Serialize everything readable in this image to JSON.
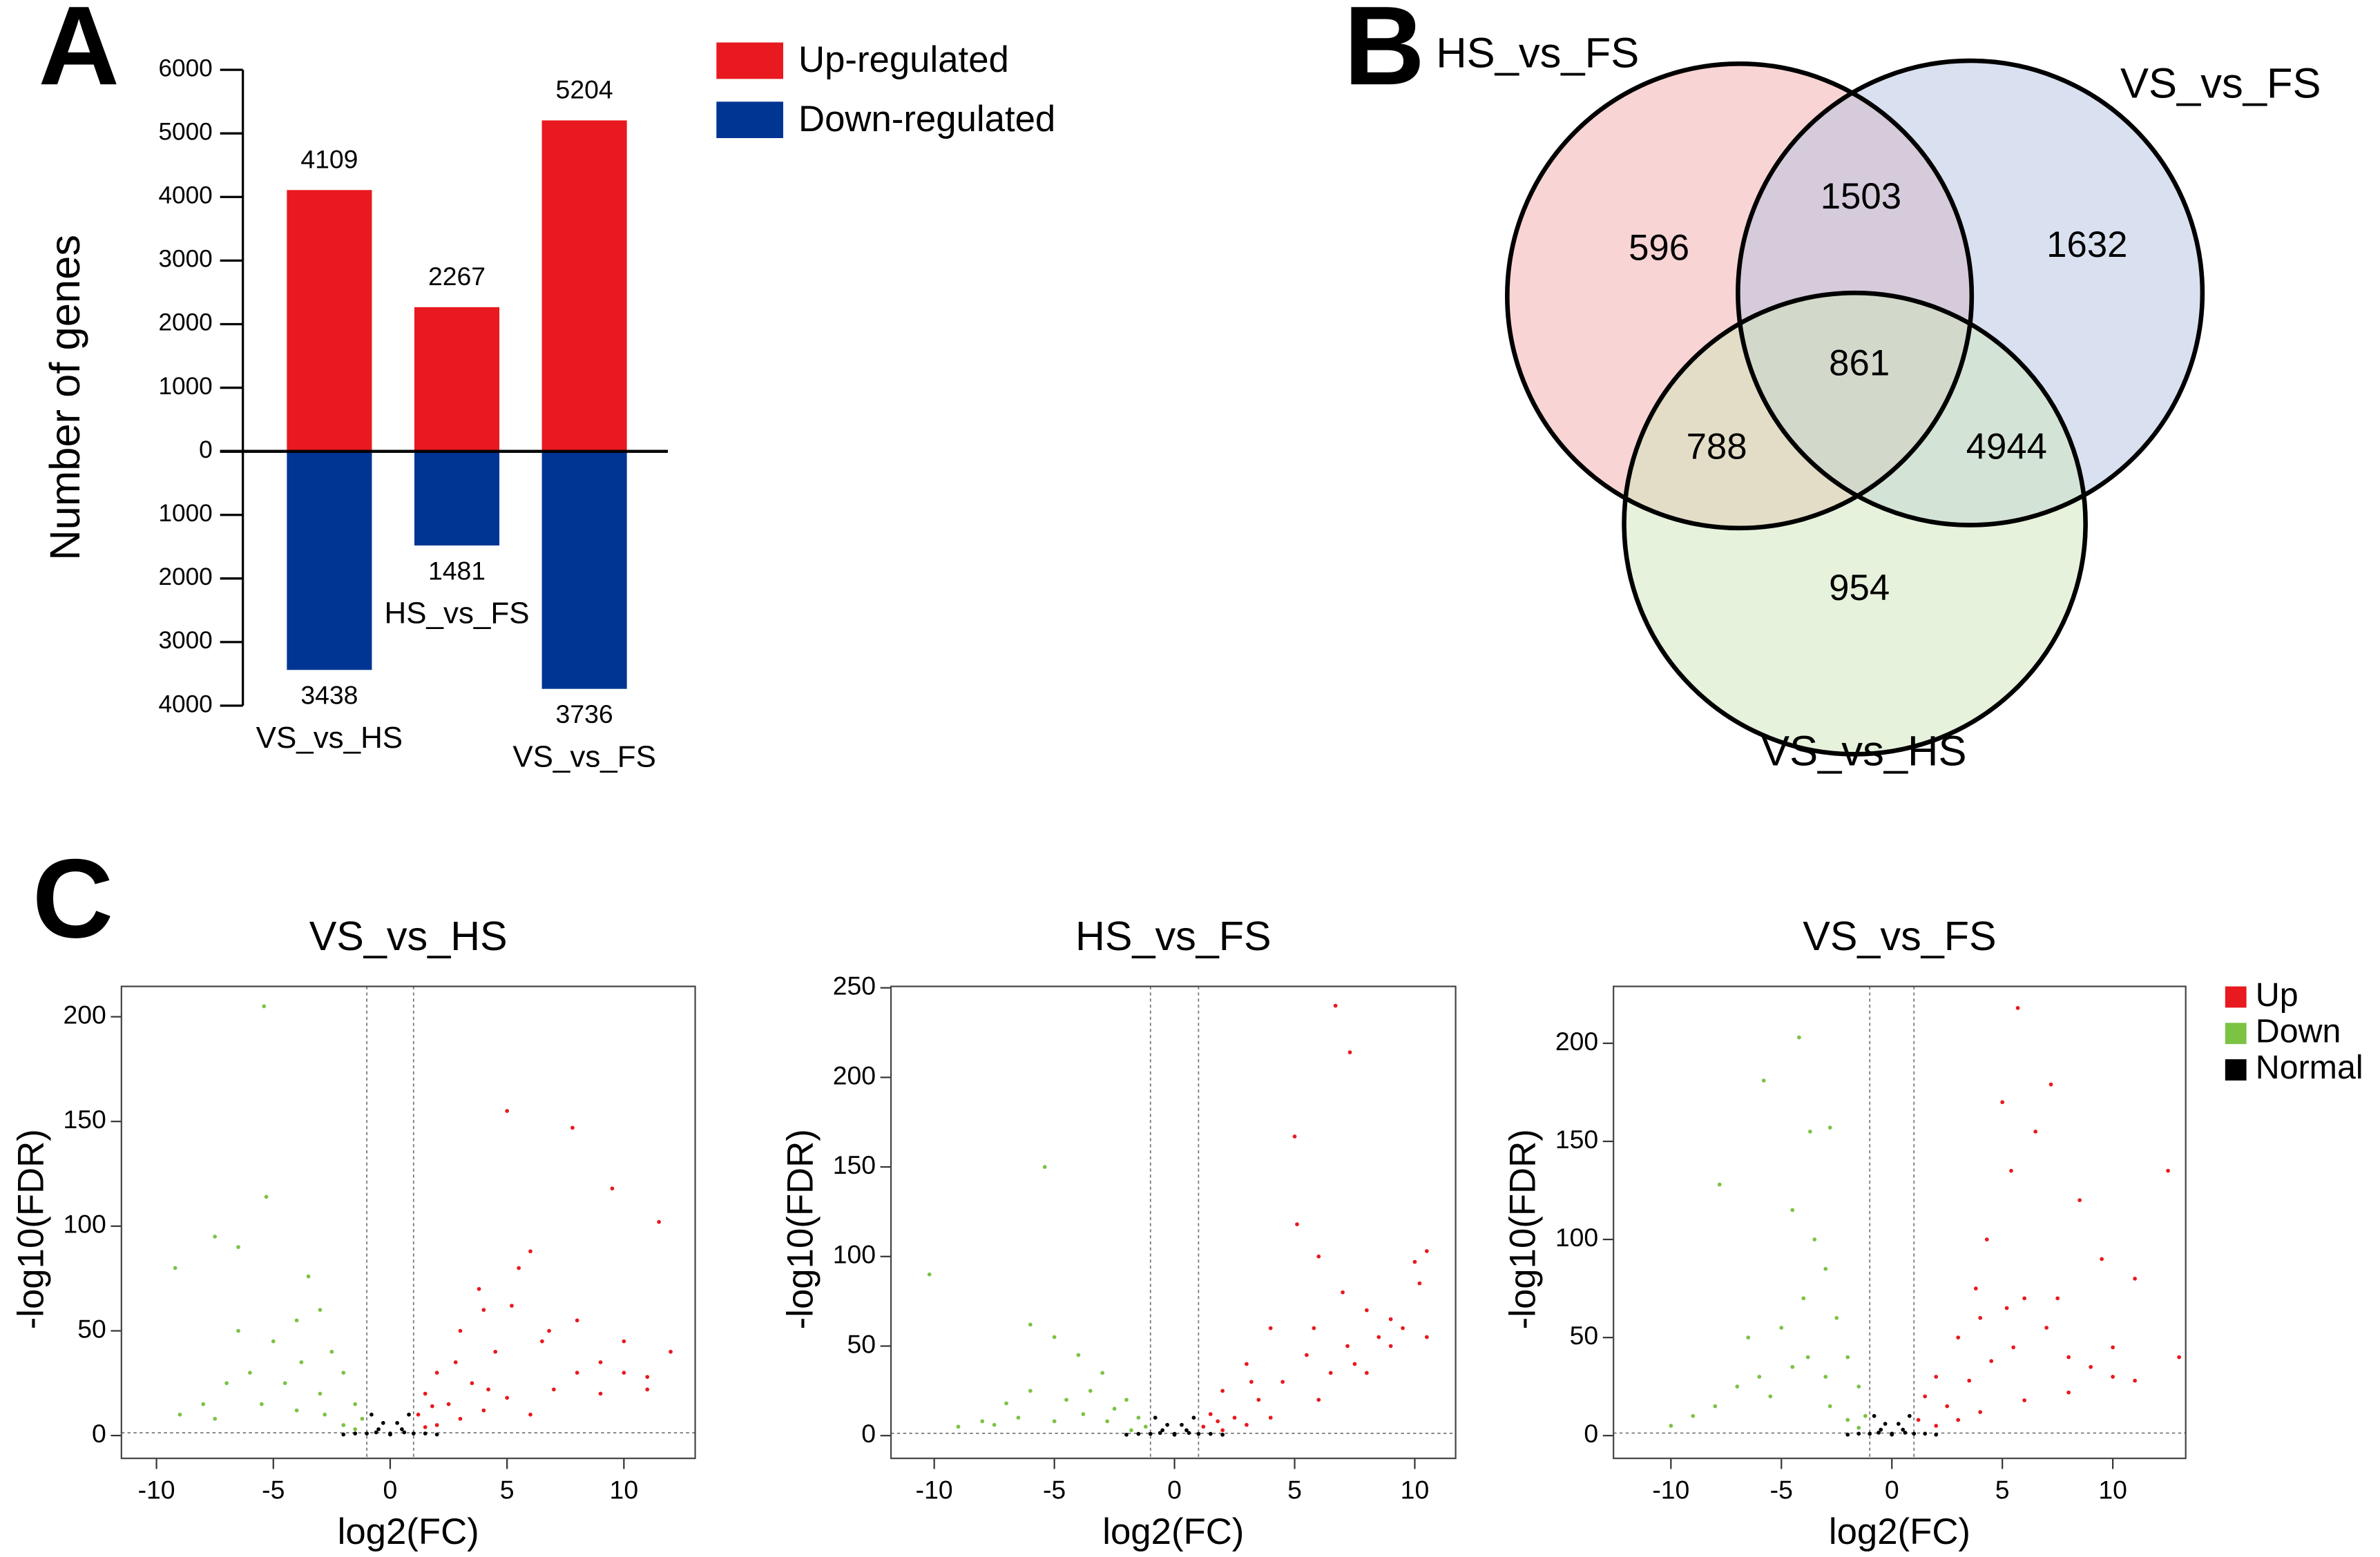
{
  "chart_data": [
    {
      "type": "diverging_bar",
      "panel_label": "A",
      "ylabel": "Number of genes",
      "categories": [
        "VS_vs_HS",
        "HS_vs_FS",
        "VS_vs_FS"
      ],
      "series": [
        {
          "name": "Up-regulated",
          "color": "#e8191f",
          "values": [
            4109,
            2267,
            5204
          ]
        },
        {
          "name": "Down-regulated",
          "color": "#003594",
          "values": [
            -3438,
            -1481,
            -3736
          ],
          "value_labels": [
            "3438",
            "1481",
            "3736"
          ]
        }
      ],
      "ylim": [
        -4000,
        6000
      ],
      "yticks": [
        6000,
        5000,
        4000,
        3000,
        2000,
        1000,
        0,
        {
          "value": -1000,
          "label": "1000"
        },
        {
          "value": -2000,
          "label": "2000"
        },
        {
          "value": -3000,
          "label": "3000"
        },
        {
          "value": -4000,
          "label": "4000"
        }
      ],
      "legend": "top-right"
    },
    {
      "type": "venn",
      "panel_label": "B",
      "sets": [
        {
          "name": "HS_vs_FS",
          "color": "#f4a9a9"
        },
        {
          "name": "VS_vs_FS",
          "color": "#b3c2e1"
        },
        {
          "name": "VS_vs_HS",
          "color": "#cde6b9"
        }
      ],
      "region_values": [
        596,
        1503,
        1632,
        861,
        788,
        4944,
        954
      ]
    },
    {
      "type": "volcano",
      "panel_label": "C",
      "title": "VS_vs_HS",
      "xlabel": "log2(FC)",
      "ylabel": "-log10(FDR)",
      "xlim": [
        -11.5,
        13.05
      ],
      "ylim": [
        -10.9,
        214.5
      ],
      "xticks": [
        -10,
        -5,
        0,
        5,
        10
      ],
      "yticks": [
        0,
        50,
        100,
        150,
        200
      ],
      "vlines": [
        -1,
        1
      ],
      "hline": 1.3,
      "legend": false,
      "series": [
        {
          "name": "Up",
          "color": "#e8191f",
          "x": [
            5,
            7.8,
            9.5,
            11.5,
            6,
            5.5,
            4,
            3,
            2,
            1.5,
            1.2,
            2.5,
            3.5,
            4.5,
            6.5,
            8,
            9,
            10,
            11,
            12,
            2,
            3,
            4,
            5,
            7,
            8,
            10,
            1.5,
            2.8,
            3.8,
            5.2,
            6.8,
            4.2,
            1.8,
            6,
            9,
            11
          ],
          "values": [
            155,
            147,
            118,
            102,
            88,
            80,
            60,
            50,
            30,
            20,
            10,
            15,
            25,
            40,
            45,
            55,
            35,
            30,
            28,
            40,
            5,
            8,
            12,
            18,
            22,
            30,
            45,
            4,
            35,
            70,
            62,
            50,
            22,
            14,
            10,
            20,
            22
          ]
        },
        {
          "name": "Down",
          "color": "#7cc243",
          "x": [
            -5.4,
            -5.3,
            -7.5,
            -6.5,
            -3.5,
            -3,
            -4,
            -5,
            -2.5,
            -2,
            -1.5,
            -1.2,
            -3,
            -4.5,
            -6,
            -7,
            -8,
            -9,
            -9.2,
            -6.5,
            -2.8,
            -3.8,
            -5.5,
            -2,
            -1.5,
            -4,
            -7.5
          ],
          "values": [
            205,
            114,
            95,
            90,
            76,
            60,
            55,
            45,
            40,
            30,
            15,
            8,
            20,
            25,
            30,
            25,
            15,
            10,
            80,
            50,
            10,
            35,
            15,
            5,
            3,
            12,
            8
          ]
        },
        {
          "name": "Normal",
          "color": "#000000",
          "x": [
            0,
            -0.5,
            0.5,
            -1,
            1,
            0.3,
            -0.3,
            0.8,
            -0.8,
            0,
            1.5,
            -1.5,
            2,
            -2,
            0.6,
            -0.6
          ],
          "values": [
            1,
            3,
            3,
            1,
            1,
            6,
            6,
            10,
            10,
            0.5,
            1,
            1,
            0.5,
            0.5,
            1.5,
            1.5
          ]
        }
      ]
    },
    {
      "type": "volcano",
      "title": "HS_vs_FS",
      "xlabel": "log2(FC)",
      "ylabel": "-log10(FDR)",
      "xlim": [
        -11.8,
        11.7
      ],
      "ylim": [
        -12.7,
        250.8
      ],
      "xticks": [
        -10,
        -5,
        0,
        5,
        10
      ],
      "yticks": [
        0,
        50,
        100,
        150,
        200,
        250
      ],
      "vlines": [
        -1,
        1
      ],
      "hline": 1.3,
      "legend": false,
      "series": [
        {
          "name": "Up",
          "color": "#e8191f",
          "x": [
            6.7,
            7.3,
            5,
            5.1,
            10.5,
            10,
            6,
            7,
            8,
            8.5,
            9,
            4,
            3,
            2,
            1.5,
            1.2,
            2.5,
            3.5,
            4.5,
            5.5,
            6.5,
            7.5,
            9.5,
            10.5,
            2,
            3,
            4,
            6,
            8,
            1.8,
            3.2,
            5.8,
            7.2,
            9,
            10.2
          ],
          "values": [
            240,
            214,
            167,
            118,
            103,
            97,
            100,
            80,
            70,
            55,
            50,
            60,
            40,
            25,
            12,
            5,
            10,
            20,
            30,
            45,
            35,
            40,
            60,
            55,
            3,
            6,
            10,
            20,
            35,
            8,
            30,
            60,
            50,
            65,
            85
          ]
        },
        {
          "name": "Down",
          "color": "#7cc243",
          "x": [
            -5.4,
            -10.2,
            -6,
            -5,
            -4,
            -3,
            -2,
            -1.5,
            -1.2,
            -2.5,
            -3.5,
            -4.5,
            -6,
            -7,
            -8,
            -9,
            -1.8,
            -2.8,
            -3.8,
            -5,
            -6.5,
            -7.5
          ],
          "values": [
            150,
            90,
            62,
            55,
            45,
            35,
            20,
            10,
            5,
            15,
            25,
            20,
            25,
            18,
            8,
            5,
            3,
            8,
            12,
            8,
            10,
            6
          ]
        },
        {
          "name": "Normal",
          "color": "#000000",
          "x": [
            0,
            -0.5,
            0.5,
            -1,
            1,
            0.3,
            -0.3,
            0.8,
            -0.8,
            0,
            1.5,
            -1.5,
            2,
            -2,
            0.6,
            -0.6
          ],
          "values": [
            1,
            3,
            3,
            1,
            1,
            6,
            6,
            10,
            10,
            0.5,
            1,
            1,
            0.5,
            0.5,
            1.5,
            1.5
          ]
        }
      ]
    },
    {
      "type": "volcano",
      "title": "VS_vs_FS",
      "xlabel": "log2(FC)",
      "ylabel": "-log10(FDR)",
      "xlim": [
        -12.6,
        13.3
      ],
      "ylim": [
        -11.6,
        229
      ],
      "xticks": [
        -10,
        -5,
        0,
        5,
        10
      ],
      "yticks": [
        0,
        50,
        100,
        150,
        200
      ],
      "vlines": [
        -1,
        1
      ],
      "hline": 1.3,
      "legend": "right",
      "series": [
        {
          "name": "Up",
          "color": "#e8191f",
          "x": [
            5.7,
            7.2,
            5,
            6.5,
            5.4,
            12.5,
            8.5,
            9.5,
            11,
            6,
            4,
            3,
            2,
            1.5,
            1.2,
            2.5,
            3.5,
            4.5,
            5.5,
            7,
            8,
            9,
            10,
            11,
            13,
            2,
            3,
            4,
            6,
            8,
            10,
            3.8,
            5.2,
            7.5,
            4.3
          ],
          "values": [
            218,
            179,
            170,
            155,
            135,
            135,
            120,
            90,
            80,
            70,
            60,
            50,
            30,
            20,
            8,
            15,
            28,
            38,
            45,
            55,
            40,
            35,
            30,
            28,
            40,
            5,
            8,
            12,
            18,
            22,
            45,
            75,
            65,
            70,
            100
          ]
        },
        {
          "name": "Down",
          "color": "#7cc243",
          "x": [
            -4.2,
            -5.8,
            -2.8,
            -3.7,
            -7.8,
            -4.5,
            -3.5,
            -3,
            -4,
            -5,
            -2.5,
            -2,
            -1.5,
            -1.2,
            -3,
            -4.5,
            -6,
            -7,
            -8,
            -9,
            -10,
            -6.5,
            -2.8,
            -3.8,
            -5.5,
            -2,
            -1.5
          ],
          "values": [
            203,
            181,
            157,
            155,
            128,
            115,
            100,
            85,
            70,
            55,
            60,
            40,
            25,
            10,
            30,
            35,
            30,
            25,
            15,
            10,
            5,
            50,
            15,
            40,
            20,
            8,
            4
          ]
        },
        {
          "name": "Normal",
          "color": "#000000",
          "x": [
            0,
            -0.5,
            0.5,
            -1,
            1,
            0.3,
            -0.3,
            0.8,
            -0.8,
            0,
            1.5,
            -1.5,
            2,
            -2,
            0.6,
            -0.6
          ],
          "values": [
            1,
            3,
            3,
            1,
            1,
            6,
            6,
            10,
            10,
            0.5,
            1,
            1,
            0.5,
            0.5,
            1.5,
            1.5
          ]
        }
      ]
    }
  ]
}
